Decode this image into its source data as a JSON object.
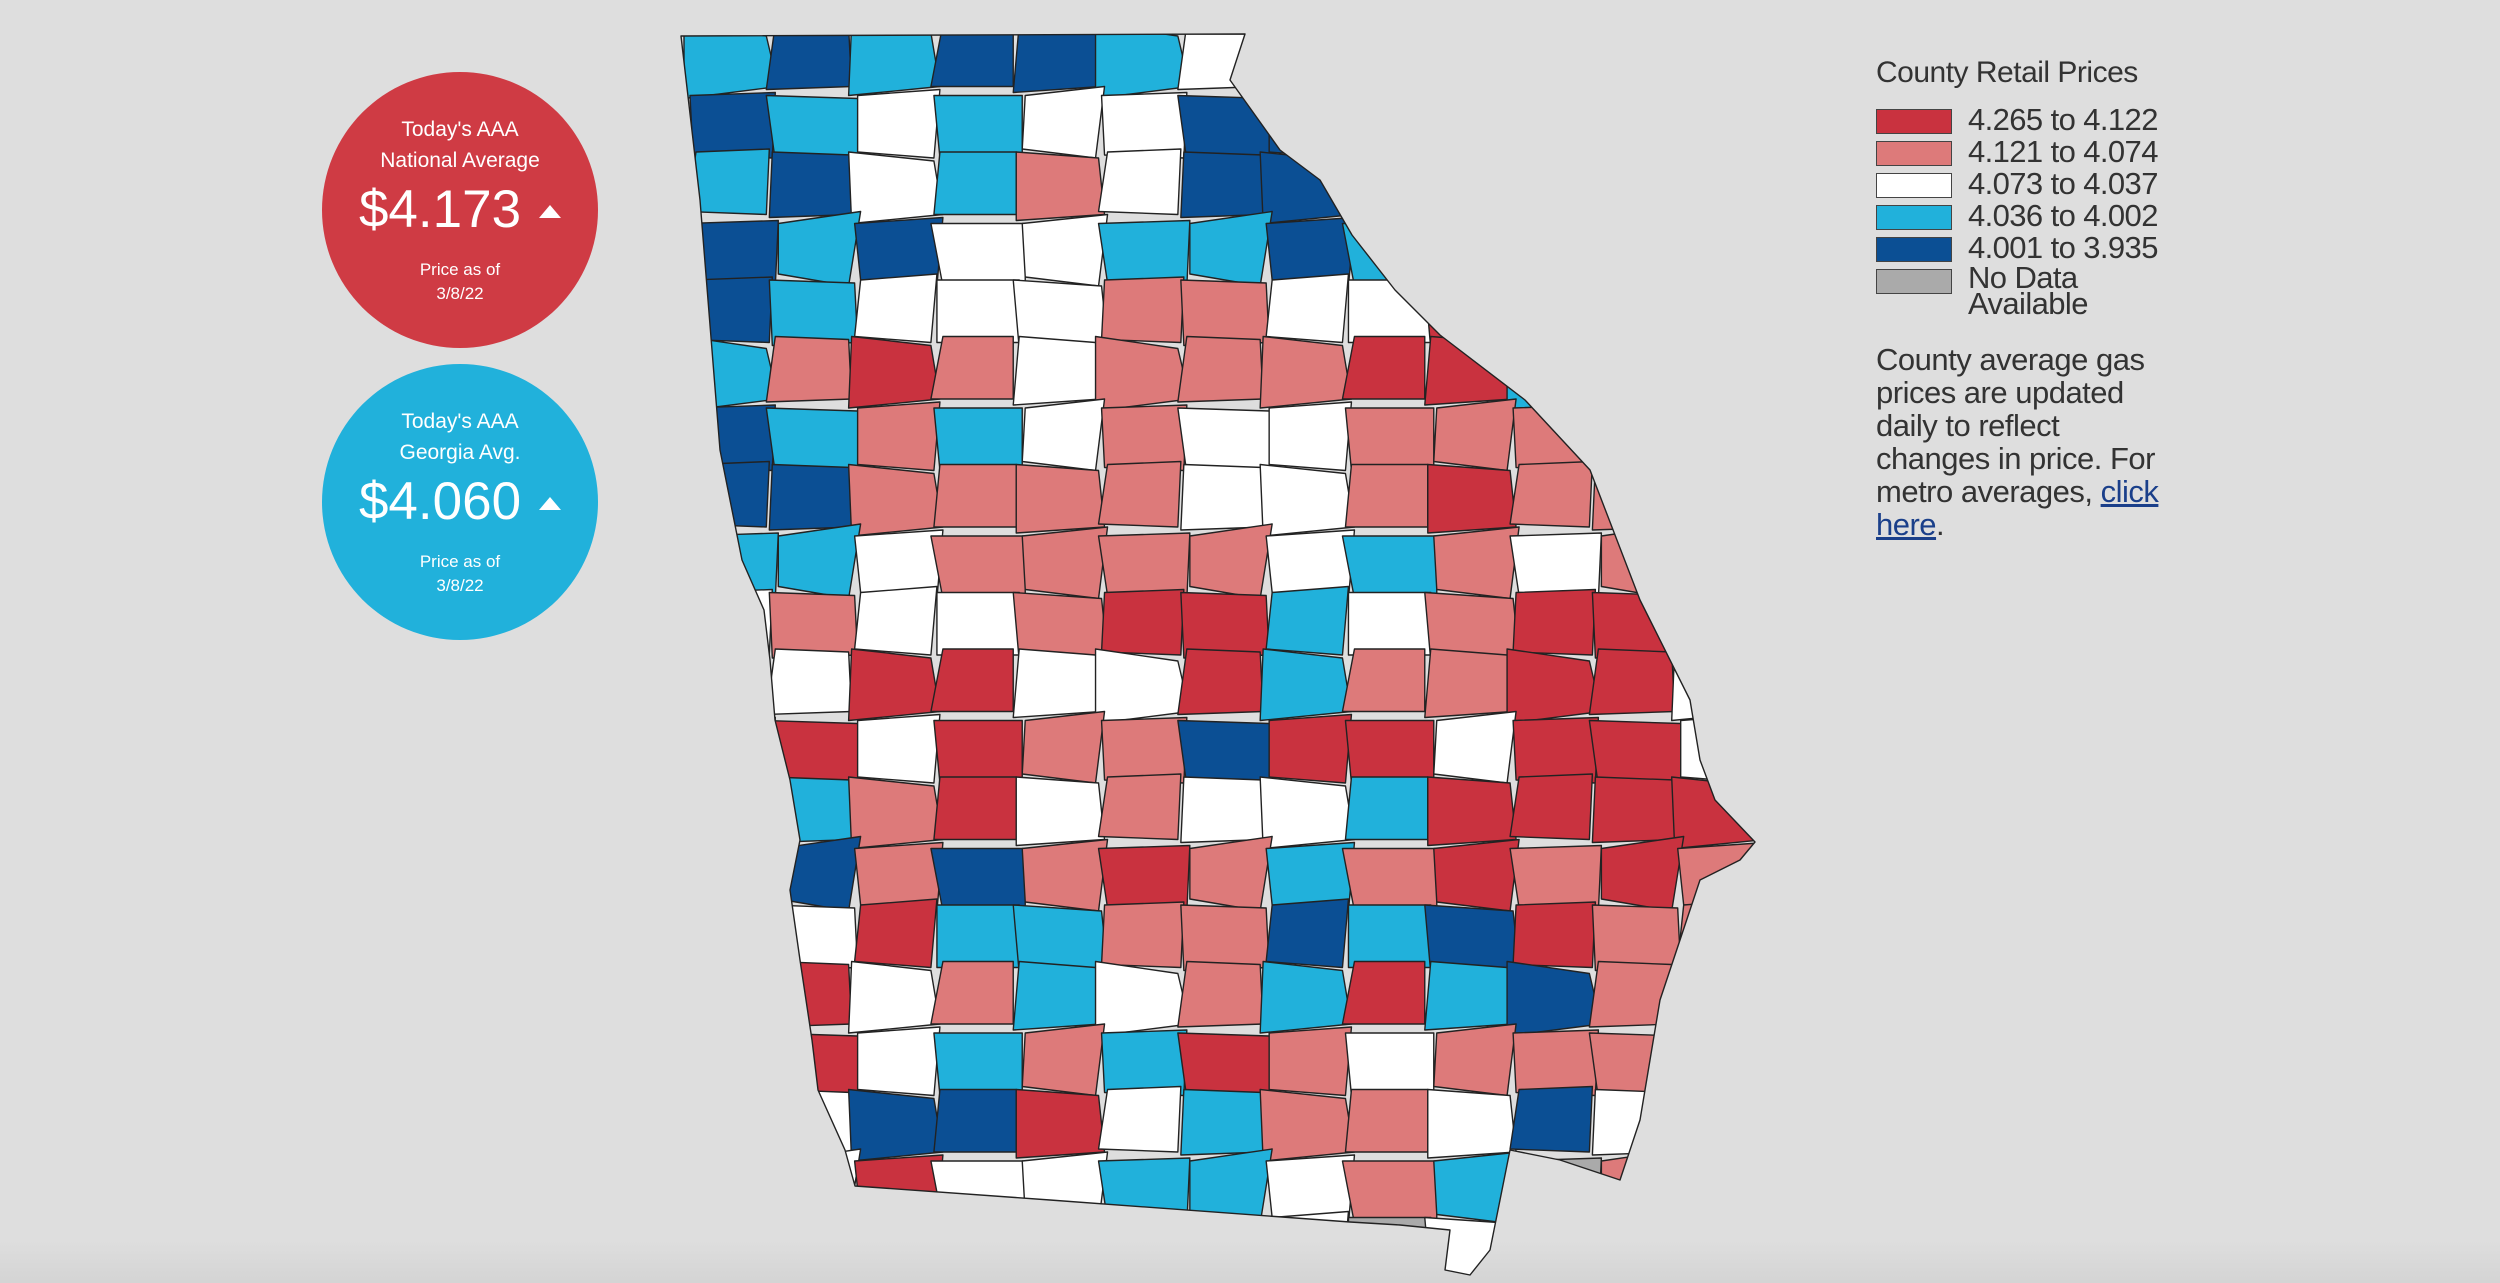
{
  "national": {
    "label_line1": "Today's AAA",
    "label_line2": "National Average",
    "price": "$4.173",
    "asof_line1": "Price as of",
    "asof_line2": "3/8/22",
    "trend": "up-arrow-icon",
    "color": "#cf3b44"
  },
  "georgia": {
    "label_line1": "Today's AAA",
    "label_line2": "Georgia Avg.",
    "price": "$4.060",
    "asof_line1": "Price as of",
    "asof_line2": "3/8/22",
    "trend": "up-arrow-icon",
    "color": "#21b1db"
  },
  "legend": {
    "title": "County Retail Prices",
    "items": [
      {
        "label": "4.265 to 4.122",
        "color": "#c9323f"
      },
      {
        "label": "4.121 to 4.074",
        "color": "#dd7a7a"
      },
      {
        "label": "4.073 to 4.037",
        "color": "#ffffff"
      },
      {
        "label": "4.036 to 4.002",
        "color": "#21b1db"
      },
      {
        "label": "4.001 to 3.935",
        "color": "#0b4f94"
      },
      {
        "label": "No Data Available",
        "label_line1": "No Data",
        "label_line2": "Available",
        "color": "#aaaaaa"
      }
    ]
  },
  "note": {
    "text": "County average gas prices are updated daily to reflect changes in price. For metro averages, ",
    "link_text": "click here",
    "trailing": "."
  },
  "map": {
    "region": "Georgia",
    "county_price_tiers": [
      "4.265 to 4.122",
      "4.121 to 4.074",
      "4.073 to 4.037",
      "4.036 to 4.002",
      "4.001 to 3.935",
      "No Data Available"
    ]
  }
}
